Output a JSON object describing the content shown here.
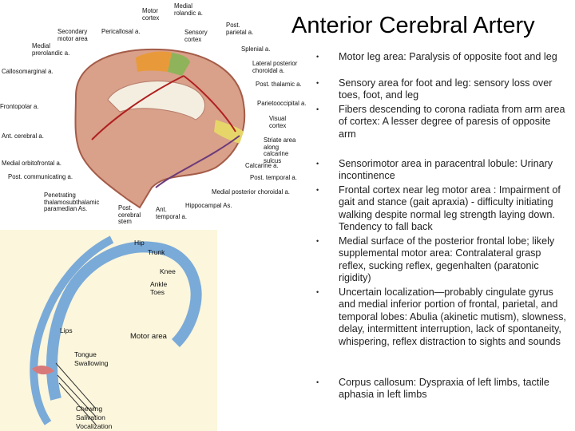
{
  "title": "Anterior Cerebral Artery",
  "bullets": [
    "Motor leg area: Paralysis of opposite foot and leg",
    "Sensory area for foot and leg: sensory loss over toes, foot, and leg",
    "Fibers descending to corona radiata from arm area of cortex: A lesser degree of paresis of opposite arm",
    "Sensorimotor area in paracentral lobule: Urinary incontinence",
    "Frontal cortex near leg motor area : Impairment of gait and stance (gait apraxia) - difficulty initiating walking despite normal leg strength laying down. Tendency to fall back",
    "Medial surface of the posterior frontal lobe; likely supplemental motor area: Contralateral grasp reflex, sucking reflex, gegenhalten (paratonic rigidity)",
    "Uncertain localization—probably cingulate gyrus and medial inferior portion of frontal, parietal, and temporal lobes: Abulia (akinetic mutism), slowness, delay, intermittent interruption, lack of spontaneity, whispering, reflex distraction to sights and sounds",
    "Corpus callosum: Dyspraxia of left limbs, tactile aphasia in left limbs"
  ],
  "brain_figure": {
    "labels": [
      "Motor cortex",
      "Medial rolandic a.",
      "Secondary motor area",
      "Pericallosal a.",
      "Sensory cortex",
      "Post. parietal a.",
      "Medial prerolandic a.",
      "Splenial a.",
      "Callosomarginal a.",
      "Lateral posterior choroidal a.",
      "Post. thalamic a.",
      "Frontopolar a.",
      "Parietooccipital a.",
      "Visual cortex",
      "Ant. cerebral a.",
      "Striate area along calcarine sulcus",
      "Medial orbitofrontal a.",
      "Calcarine a.",
      "Post. communicating a.",
      "Post. temporal a.",
      "Medial posterior choroidal a.",
      "Penetrating thalamosubthalamic paramedian As.",
      "Post. cerebral stem",
      "Ant. temporal a.",
      "Hippocampal As."
    ]
  },
  "homunculus_figure": {
    "labels": [
      "Hip",
      "Trunk",
      "Knee",
      "Ankle",
      "Toes",
      "Lips",
      "Tongue",
      "Swallowing",
      "Motor area",
      "Chewing",
      "Salivation",
      "Vocalization"
    ]
  }
}
